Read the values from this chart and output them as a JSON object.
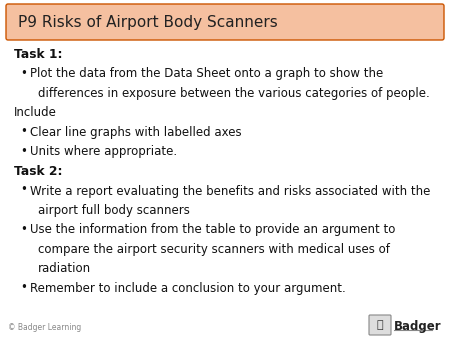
{
  "title": "P9 Risks of Airport Body Scanners",
  "title_bg_color": "#F5C0A0",
  "title_border_color": "#CC5500",
  "slide_bg_color": "#FFFFFF",
  "body_lines": [
    {
      "type": "bold",
      "indent": 0,
      "text": "Task 1:"
    },
    {
      "type": "bullet",
      "indent": 1,
      "text": "Plot the data from the Data Sheet onto a graph to show the"
    },
    {
      "type": "cont",
      "indent": 2,
      "text": "differences in exposure between the various categories of people."
    },
    {
      "type": "plain",
      "indent": 0,
      "text": "Include"
    },
    {
      "type": "bullet",
      "indent": 1,
      "text": "Clear line graphs with labelled axes"
    },
    {
      "type": "bullet",
      "indent": 1,
      "text": "Units where appropriate."
    },
    {
      "type": "bold",
      "indent": 0,
      "text": "Task 2:"
    },
    {
      "type": "bullet",
      "indent": 1,
      "text": "Write a report evaluating the benefits and risks associated with the"
    },
    {
      "type": "cont",
      "indent": 2,
      "text": "airport full body scanners"
    },
    {
      "type": "bullet",
      "indent": 1,
      "text": "Use the information from the table to provide an argument to"
    },
    {
      "type": "cont",
      "indent": 2,
      "text": "compare the airport security scanners with medical uses of"
    },
    {
      "type": "cont",
      "indent": 2,
      "text": "radiation"
    },
    {
      "type": "bullet",
      "indent": 1,
      "text": "Remember to include a conclusion to your argument."
    }
  ],
  "footer_text": "© Badger Learning",
  "font_size": 8.5,
  "title_font_size": 11,
  "bold_font_size": 8.8
}
